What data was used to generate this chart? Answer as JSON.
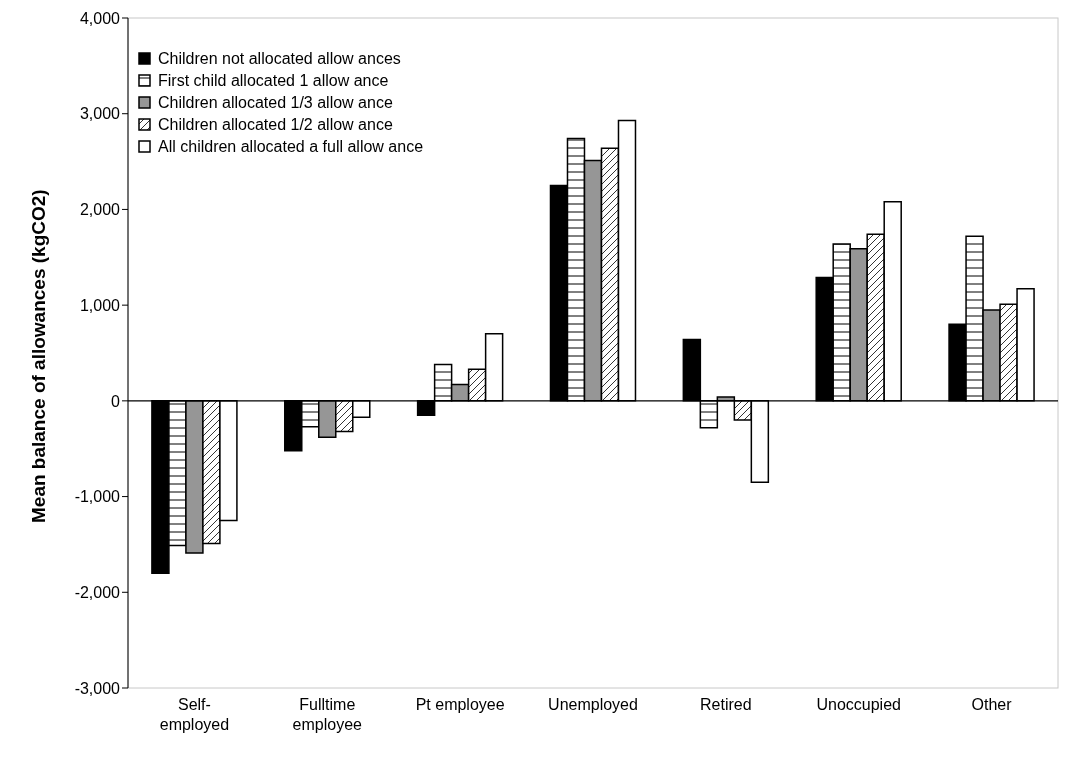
{
  "chart_data": {
    "type": "bar",
    "ylabel": "Mean balance of allowances (kgCO2)",
    "categories": [
      "Self-employed",
      "Fulltime employee",
      "Pt employee",
      "Unemployed",
      "Retired",
      "Unoccupied",
      "Other"
    ],
    "series": [
      {
        "name": "Children not allocated allow ances",
        "color": "#000000",
        "values": [
          -1800,
          -520,
          -150,
          2250,
          640,
          1290,
          800
        ]
      },
      {
        "name": "First child allocated 1 allow ance",
        "color": "#000000",
        "values": [
          -1510,
          -270,
          380,
          2740,
          -280,
          1640,
          1720
        ]
      },
      {
        "name": "Children allocated 1/3 allow ance",
        "color": "#969696",
        "values": [
          -1590,
          -380,
          170,
          2510,
          40,
          1590,
          950
        ]
      },
      {
        "name": "Children allocated 1/2 allow ance",
        "color": "#000000",
        "values": [
          -1490,
          -320,
          330,
          2640,
          -200,
          1740,
          1010
        ]
      },
      {
        "name": "All children allocated a full allow ance",
        "color": "#ffffff",
        "values": [
          -1250,
          -170,
          700,
          2930,
          -850,
          2080,
          1170
        ]
      }
    ],
    "ylim": [
      -3000,
      4000
    ],
    "yticks": [
      {
        "value": -3000,
        "label": "-3,000"
      },
      {
        "value": -2000,
        "label": "-2,000"
      },
      {
        "value": -1000,
        "label": "-1,000"
      },
      0,
      {
        "value": 1000,
        "label": "1,000"
      },
      {
        "value": 2000,
        "label": "2,000"
      },
      {
        "value": 3000,
        "label": "3,000"
      },
      {
        "value": 4000,
        "label": "4,000"
      }
    ],
    "ref_lines": [
      {
        "axis": "y",
        "value": 0,
        "color": "#000000"
      }
    ],
    "grid": false,
    "legend": "top left"
  }
}
